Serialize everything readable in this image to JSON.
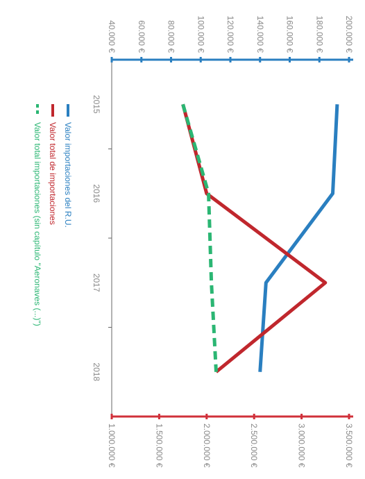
{
  "chart_data": {
    "type": "line",
    "categories": [
      "2015",
      "2016",
      "2017",
      "2018"
    ],
    "axes": {
      "left": {
        "ticks": [
          "40.000 €",
          "60.000 €",
          "80.000 €",
          "100.000 €",
          "120.000 €",
          "140.000 €",
          "160.000 €",
          "180.000 €",
          "200.000 €"
        ],
        "range": [
          40000,
          200000
        ],
        "color": "#2a7fc0"
      },
      "right": {
        "ticks": [
          "1.000.000 €",
          "1.500.000 €",
          "2.000.000 €",
          "2.500.000 €",
          "3.000.000 €",
          "3.500.000 €"
        ],
        "range": [
          1000000,
          3500000
        ],
        "color": "#d0303a"
      }
    },
    "series": [
      {
        "name": "Valor importaciones del R.U.",
        "axis": "left",
        "color": "#2a7fc0",
        "dashed": false,
        "values": [
          192000,
          189000,
          144000,
          140000
        ]
      },
      {
        "name": "Valor total de importaciones",
        "axis": "right",
        "color": "#c0272d",
        "dashed": false,
        "values": [
          1750000,
          2000000,
          3250000,
          2100000
        ]
      },
      {
        "name": "Valor total importaciones (sin capítulo \"Aeronaves (...)\")",
        "axis": "right",
        "color": "#2bb673",
        "dashed": true,
        "values": [
          1750000,
          2020000,
          2050000,
          2100000
        ]
      }
    ],
    "grid": false,
    "legend_position": "bottom-left"
  }
}
